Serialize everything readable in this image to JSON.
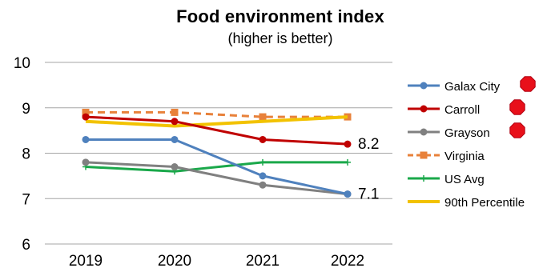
{
  "chart_data": {
    "type": "line",
    "title": "Food environment  index",
    "subtitle": "(higher is better)",
    "xlabel": "",
    "ylabel": "",
    "x": [
      "2019",
      "2020",
      "2021",
      "2022"
    ],
    "ylim": [
      6,
      10
    ],
    "yticks": [
      6,
      7,
      8,
      9,
      10
    ],
    "grid": true,
    "legend_position": "right",
    "series": [
      {
        "name": "Galax City",
        "values": [
          8.3,
          8.3,
          7.5,
          7.1
        ],
        "color": "#4f81bd",
        "marker": "circle",
        "dash": false,
        "status_icon": "red-octagon"
      },
      {
        "name": "Carroll",
        "values": [
          8.8,
          8.7,
          8.3,
          8.2
        ],
        "color": "#c00000",
        "marker": "circle",
        "dash": false,
        "status_icon": "red-octagon"
      },
      {
        "name": "Grayson",
        "values": [
          7.8,
          7.7,
          7.3,
          7.1
        ],
        "color": "#808080",
        "marker": "circle",
        "dash": false,
        "status_icon": "red-octagon"
      },
      {
        "name": "Virginia",
        "values": [
          8.9,
          8.9,
          8.8,
          8.8
        ],
        "color": "#e8813a",
        "marker": "square",
        "dash": true
      },
      {
        "name": "US Avg",
        "values": [
          7.7,
          7.6,
          7.8,
          7.8
        ],
        "color": "#1aa84a",
        "marker": "plus",
        "dash": false
      },
      {
        "name": "90th Percentile",
        "values": [
          8.7,
          8.6,
          8.7,
          8.8
        ],
        "color": "#f2c200",
        "marker": "none",
        "dash": false
      }
    ],
    "annotations": [
      {
        "text": "8.2",
        "series": "Carroll",
        "x": "2022",
        "y": 8.2
      },
      {
        "text": "7.1",
        "series": "Grayson",
        "x": "2022",
        "y": 7.1
      }
    ]
  }
}
